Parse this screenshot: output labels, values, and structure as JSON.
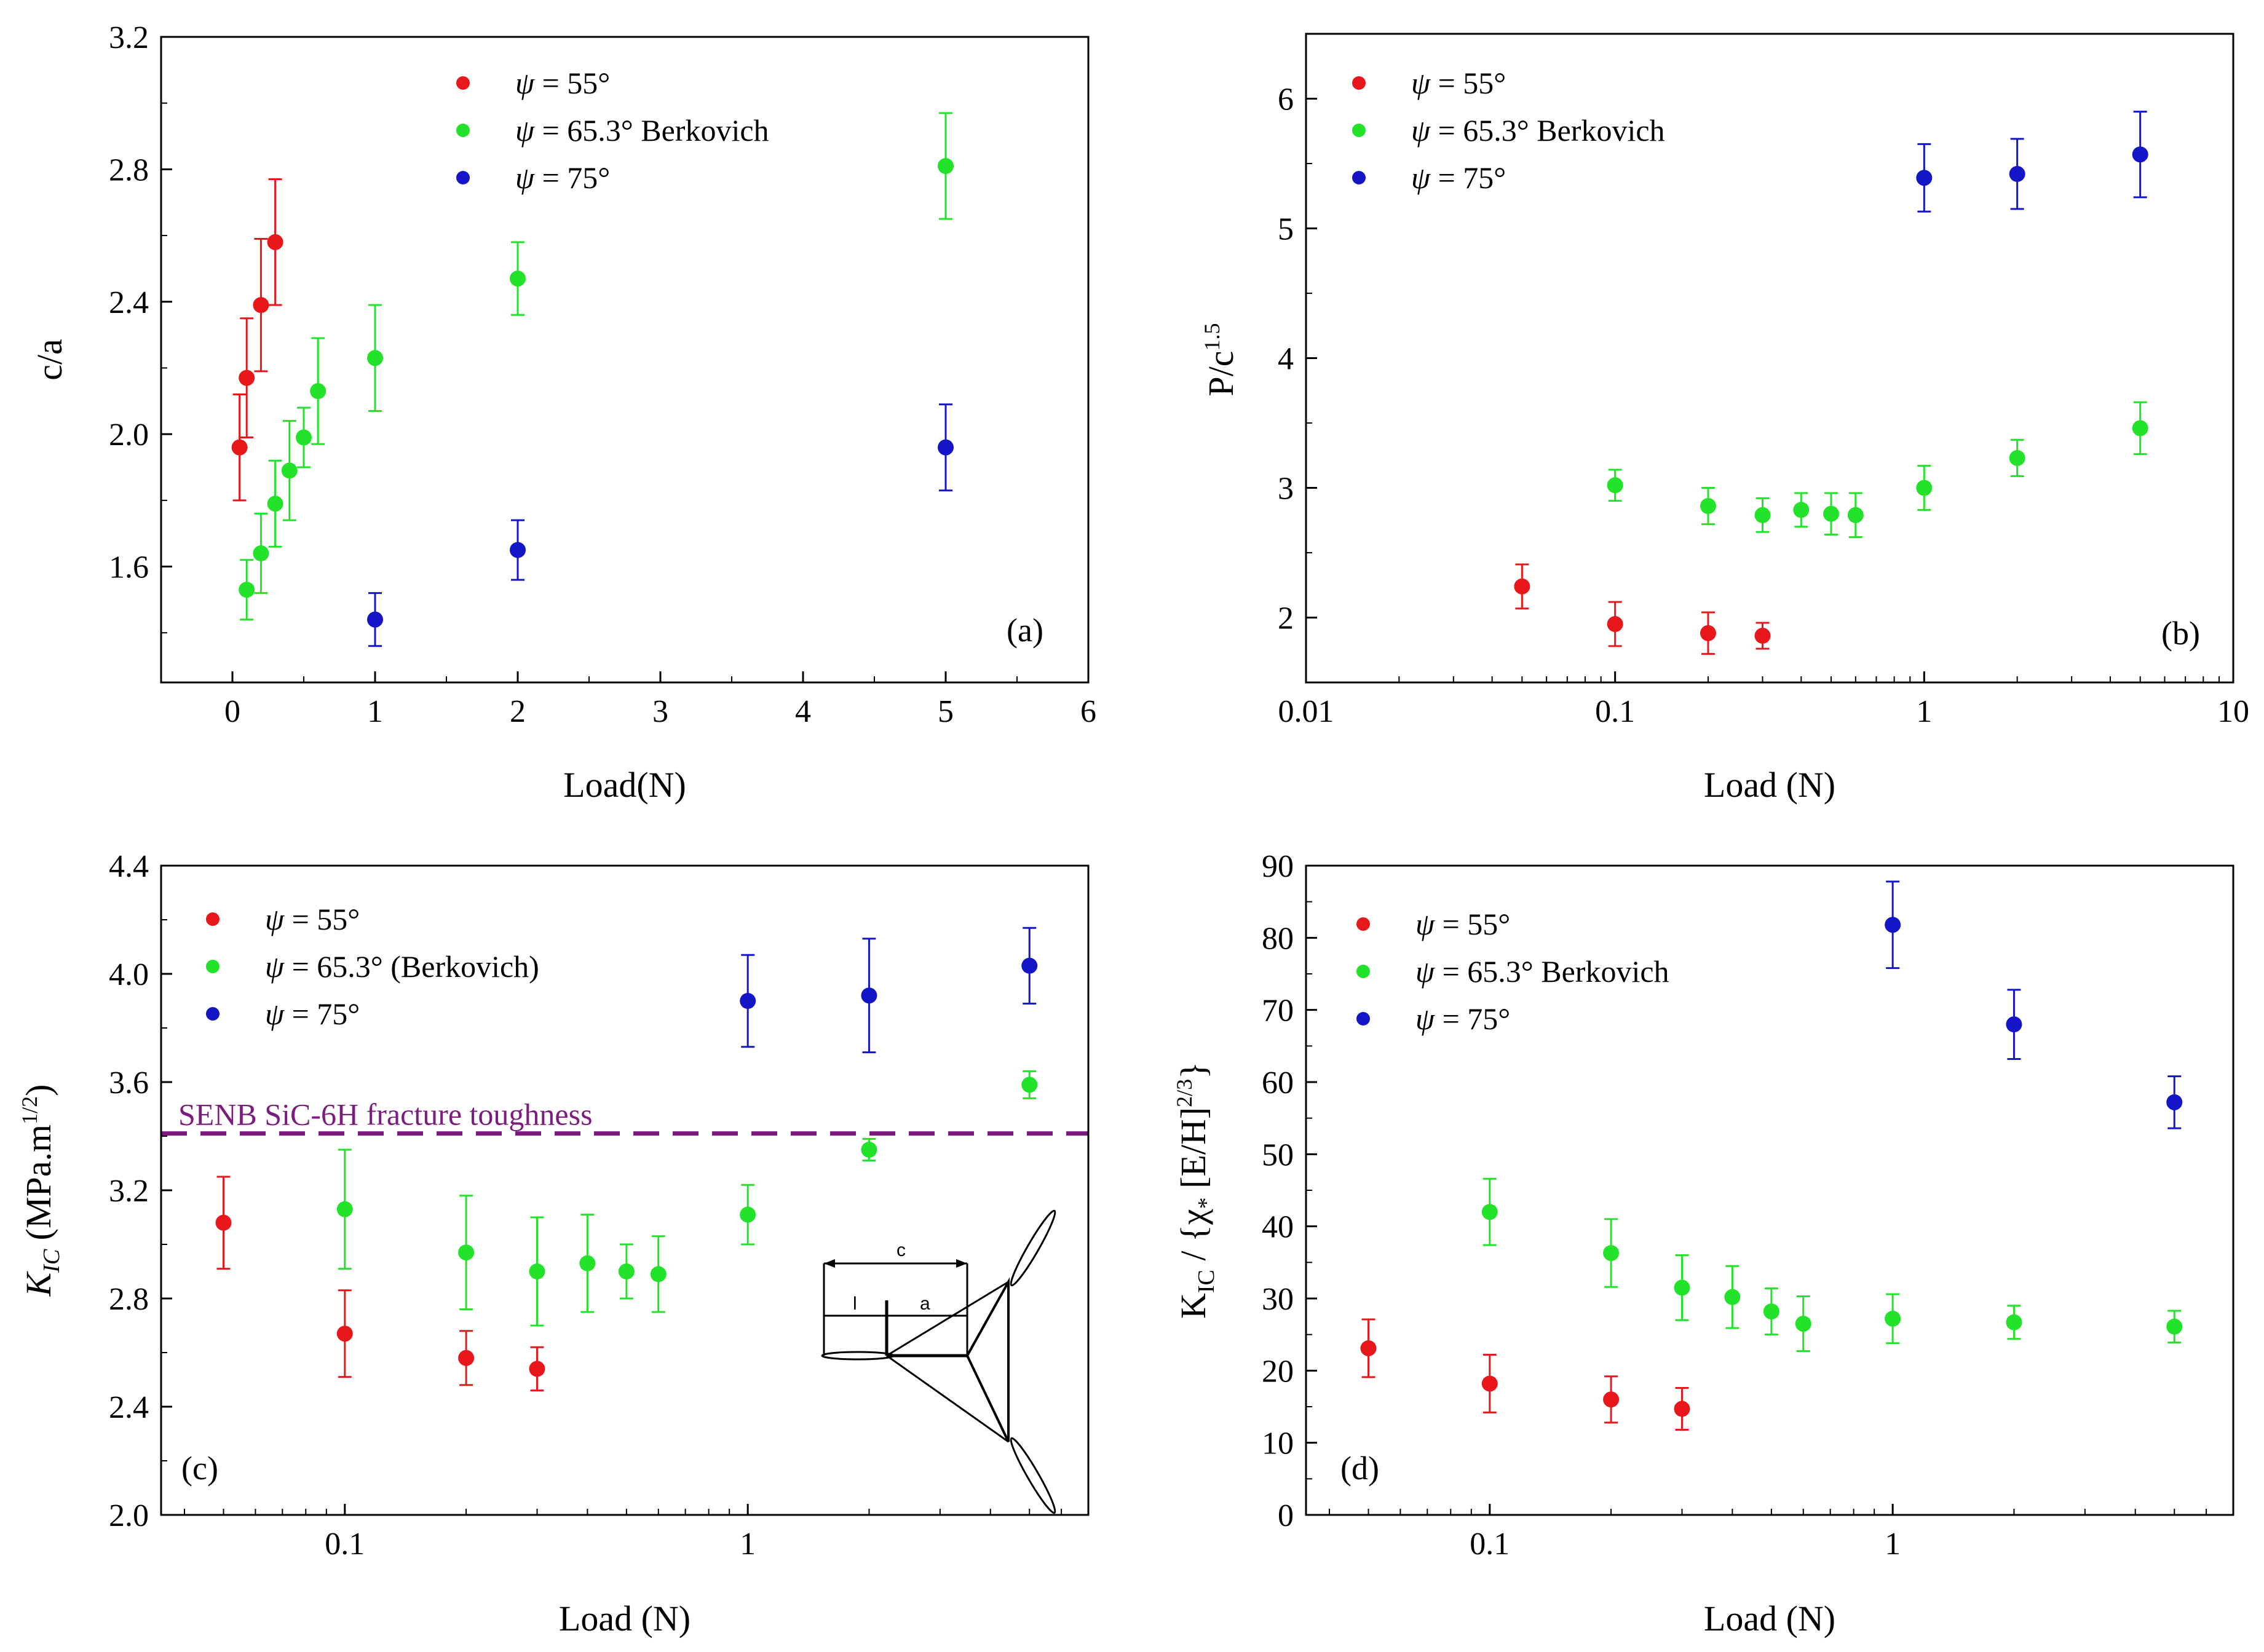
{
  "colors": {
    "s55": "#E8171B",
    "s65": "#22E22A",
    "s75": "#1515C8",
    "ref": "#7B1C7F",
    "axis": "#000000"
  },
  "legend_entries": [
    {
      "key": "s55",
      "sym": "ψ",
      "text": " = 55°"
    },
    {
      "key": "s65",
      "sym": "ψ",
      "text": " = 65.3° Berkovich"
    },
    {
      "key": "s75",
      "sym": "ψ",
      "text": " = 75°"
    }
  ],
  "chart_data": [
    {
      "id": "a",
      "type": "scatter",
      "xscale": "linear",
      "xlabel": "Load(N)",
      "ylabel": "c/a",
      "panel_label": "(a)",
      "xlim": [
        -0.5,
        6
      ],
      "ylim": [
        1.25,
        3.2
      ],
      "xticks": [
        0,
        1,
        2,
        3,
        4,
        5,
        6
      ],
      "xtick_labels": [
        "0",
        "1",
        "2",
        "3",
        "4",
        "5",
        "6"
      ],
      "yticks": [
        1.6,
        2.0,
        2.4,
        2.8,
        3.2
      ],
      "ytick_labels": [
        "1.6",
        "2.0",
        "2.4",
        "2.8",
        "3.2"
      ],
      "series": [
        {
          "name": "ψ = 55°",
          "color_key": "s55",
          "x": [
            0.05,
            0.1,
            0.2,
            0.3
          ],
          "y": [
            1.96,
            2.17,
            2.39,
            2.58
          ],
          "err": [
            0.16,
            0.18,
            0.2,
            0.19
          ]
        },
        {
          "name": "ψ = 65.3° Berkovich",
          "color_key": "s65",
          "x": [
            0.1,
            0.2,
            0.3,
            0.4,
            0.5,
            0.6,
            1,
            2,
            5
          ],
          "y": [
            1.53,
            1.64,
            1.79,
            1.89,
            1.99,
            2.13,
            2.23,
            2.47,
            2.81
          ],
          "err": [
            0.09,
            0.12,
            0.13,
            0.15,
            0.09,
            0.16,
            0.16,
            0.11,
            0.16
          ]
        },
        {
          "name": "ψ = 75°",
          "color_key": "s75",
          "x": [
            1,
            2,
            5
          ],
          "y": [
            1.44,
            1.65,
            1.96
          ],
          "err": [
            0.08,
            0.09,
            0.13
          ]
        }
      ]
    },
    {
      "id": "b",
      "type": "scatter",
      "xscale": "log",
      "xlabel": "Load (N)",
      "ylabel": "P/c",
      "ylabel_sup": "1.5",
      "panel_label": "(b)",
      "xlim": [
        0.01,
        10
      ],
      "ylim": [
        1.5,
        6.5
      ],
      "xticks": [
        0.01,
        0.1,
        1,
        10
      ],
      "xtick_labels": [
        "0.01",
        "0.1",
        "1",
        "10"
      ],
      "yticks": [
        2,
        3,
        4,
        5,
        6
      ],
      "ytick_labels": [
        "2",
        "3",
        "4",
        "5",
        "6"
      ],
      "series": [
        {
          "name": "ψ = 55°",
          "color_key": "s55",
          "x": [
            0.05,
            0.1,
            0.2,
            0.3
          ],
          "y": [
            2.24,
            1.95,
            1.88,
            1.86
          ],
          "err": [
            0.17,
            0.17,
            0.16,
            0.1
          ]
        },
        {
          "name": "ψ = 65.3° Berkovich",
          "color_key": "s65",
          "x": [
            0.1,
            0.2,
            0.3,
            0.4,
            0.5,
            0.6,
            1,
            2,
            5
          ],
          "y": [
            3.02,
            2.86,
            2.79,
            2.83,
            2.8,
            2.79,
            3.0,
            3.23,
            3.46
          ],
          "err": [
            0.12,
            0.14,
            0.13,
            0.13,
            0.16,
            0.17,
            0.17,
            0.14,
            0.2
          ]
        },
        {
          "name": "ψ = 75°",
          "color_key": "s75",
          "x": [
            1,
            2,
            5
          ],
          "y": [
            5.39,
            5.42,
            5.57
          ],
          "err": [
            0.26,
            0.27,
            0.33
          ]
        }
      ]
    },
    {
      "id": "c",
      "type": "scatter",
      "xscale": "log",
      "xlabel": "Load (N)",
      "ylabel_italic": "K",
      "ylabel_sub": "IC",
      "ylabel_rest": " (MPa.m",
      "ylabel_sup": "1/2",
      "ylabel_end": ")",
      "panel_label": "(c)",
      "xlim": [
        0.035,
        7
      ],
      "ylim": [
        2.0,
        4.4
      ],
      "xticks": [
        0.1,
        1
      ],
      "xtick_labels": [
        "0.1",
        "1"
      ],
      "yticks": [
        2.0,
        2.4,
        2.8,
        3.2,
        3.6,
        4.0,
        4.4
      ],
      "ytick_labels": [
        "2.0",
        "2.4",
        "2.8",
        "3.2",
        "3.6",
        "4.0",
        "4.4"
      ],
      "reference_line": {
        "y": 3.41,
        "label": "SENB SiC-6H fracture toughness"
      },
      "legend_override_65": " = 65.3° (Berkovich)",
      "inset_labels": {
        "c": "c",
        "l": "l",
        "a": "a"
      },
      "series": [
        {
          "name": "ψ = 55°",
          "color_key": "s55",
          "x": [
            0.05,
            0.1,
            0.2,
            0.3
          ],
          "y": [
            3.08,
            2.67,
            2.58,
            2.54
          ],
          "err": [
            0.17,
            0.16,
            0.1,
            0.08
          ]
        },
        {
          "name": "ψ = 65.3° (Berkovich)",
          "color_key": "s65",
          "x": [
            0.1,
            0.2,
            0.3,
            0.4,
            0.5,
            0.6,
            1,
            2,
            5
          ],
          "y": [
            3.13,
            2.97,
            2.9,
            2.93,
            2.9,
            2.89,
            3.11,
            3.35,
            3.59
          ],
          "err": [
            0.22,
            0.21,
            0.2,
            0.18,
            0.1,
            0.14,
            0.11,
            0.04,
            0.05
          ]
        },
        {
          "name": "ψ = 75°",
          "color_key": "s75",
          "x": [
            1,
            2,
            5
          ],
          "y": [
            3.9,
            3.92,
            4.03
          ],
          "err": [
            0.17,
            0.21,
            0.14
          ]
        }
      ]
    },
    {
      "id": "d",
      "type": "scatter",
      "xscale": "log",
      "xlabel": "Load (N)",
      "ylabel_text": "K",
      "ylabel_sub": "IC",
      "ylabel_rest": " / {χ",
      "ylabel_sub2": "*",
      "ylabel_mid": " [E/H]",
      "ylabel_sup": "2/3",
      "ylabel_end": "}",
      "panel_label": "(d)",
      "xlim": [
        0.035,
        7
      ],
      "ylim": [
        0,
        90
      ],
      "xticks": [
        0.1,
        1
      ],
      "xtick_labels": [
        "0.1",
        "1"
      ],
      "yticks": [
        0,
        10,
        20,
        30,
        40,
        50,
        60,
        70,
        80,
        90
      ],
      "ytick_labels": [
        "0",
        "10",
        "20",
        "30",
        "40",
        "50",
        "60",
        "70",
        "80",
        "90"
      ],
      "series": [
        {
          "name": "ψ = 55°",
          "color_key": "s55",
          "x": [
            0.05,
            0.1,
            0.2,
            0.3
          ],
          "y": [
            23.1,
            18.2,
            16.0,
            14.7
          ],
          "err": [
            4.0,
            4.0,
            3.2,
            2.9
          ]
        },
        {
          "name": "ψ = 65.3° Berkovich",
          "color_key": "s65",
          "x": [
            0.1,
            0.2,
            0.3,
            0.4,
            0.5,
            0.6,
            1,
            2,
            5
          ],
          "y": [
            42.0,
            36.3,
            31.5,
            30.2,
            28.2,
            26.5,
            27.2,
            26.7,
            26.1
          ],
          "err": [
            4.6,
            4.7,
            4.5,
            4.3,
            3.2,
            3.8,
            3.4,
            2.3,
            2.2
          ]
        },
        {
          "name": "ψ = 75°",
          "color_key": "s75",
          "x": [
            1,
            2,
            5
          ],
          "y": [
            81.8,
            68.0,
            57.2
          ],
          "err": [
            6.0,
            4.8,
            3.6
          ]
        }
      ]
    }
  ]
}
